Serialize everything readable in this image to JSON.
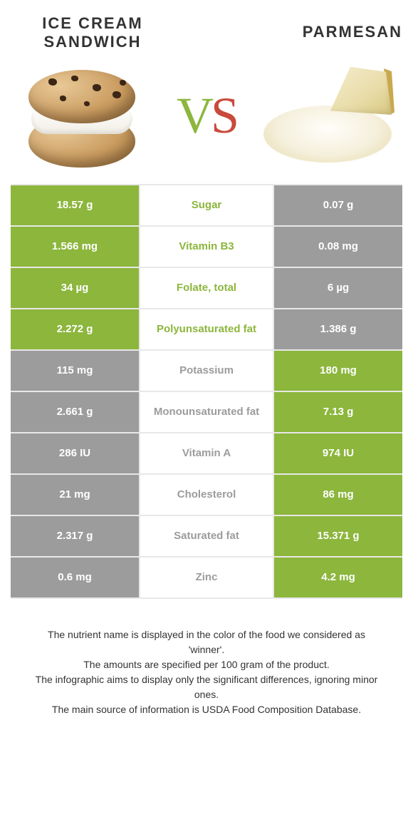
{
  "header": {
    "left_title": "Ice Cream Sandwich",
    "right_title": "Parmesan",
    "vs_v": "V",
    "vs_s": "S"
  },
  "colors": {
    "green": "#8cb63c",
    "gray": "#9c9c9c",
    "red": "#c94a3b",
    "border": "#e8e8e8"
  },
  "rows": [
    {
      "nutrient": "Sugar",
      "left": "18.57 g",
      "right": "0.07 g",
      "winner": "left"
    },
    {
      "nutrient": "Vitamin B3",
      "left": "1.566 mg",
      "right": "0.08 mg",
      "winner": "left"
    },
    {
      "nutrient": "Folate, total",
      "left": "34 µg",
      "right": "6 µg",
      "winner": "left"
    },
    {
      "nutrient": "Polyunsaturated fat",
      "left": "2.272 g",
      "right": "1.386 g",
      "winner": "left"
    },
    {
      "nutrient": "Potassium",
      "left": "115 mg",
      "right": "180 mg",
      "winner": "right"
    },
    {
      "nutrient": "Monounsaturated fat",
      "left": "2.661 g",
      "right": "7.13 g",
      "winner": "right"
    },
    {
      "nutrient": "Vitamin A",
      "left": "286 IU",
      "right": "974 IU",
      "winner": "right"
    },
    {
      "nutrient": "Cholesterol",
      "left": "21 mg",
      "right": "86 mg",
      "winner": "right"
    },
    {
      "nutrient": "Saturated fat",
      "left": "2.317 g",
      "right": "15.371 g",
      "winner": "right"
    },
    {
      "nutrient": "Zinc",
      "left": "0.6 mg",
      "right": "4.2 mg",
      "winner": "right"
    }
  ],
  "footnotes": [
    "The nutrient name is displayed in the color of the food we considered as 'winner'.",
    "The amounts are specified per 100 gram of the product.",
    "The infographic aims to display only the significant differences, ignoring minor ones.",
    "The main source of information is USDA Food Composition Database."
  ]
}
